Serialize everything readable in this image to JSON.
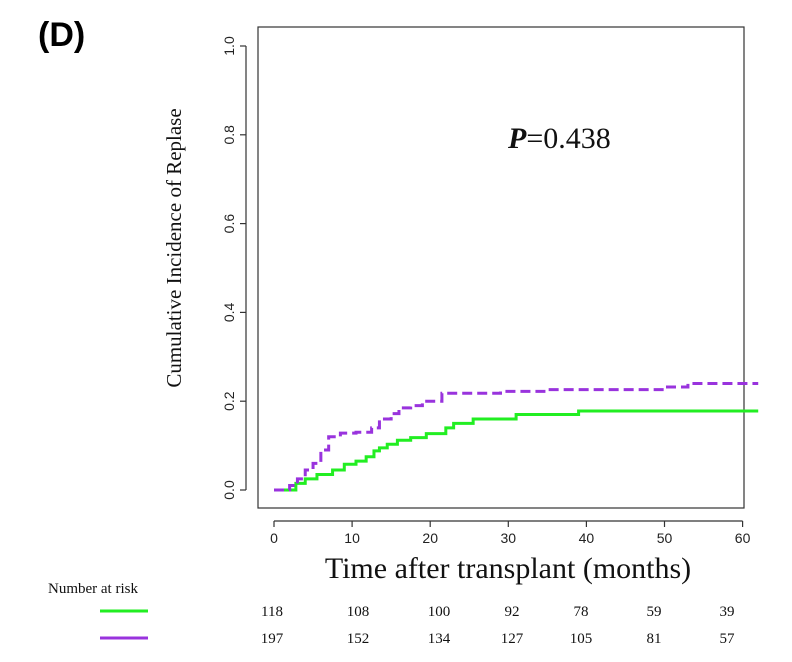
{
  "panel_label": "(D)",
  "annotation": {
    "p_symbol": "P",
    "p_value": "=0.438"
  },
  "chart_data": {
    "type": "line",
    "title": "",
    "xlabel": "Time after transplant (months)",
    "ylabel": "Cumulative Incidence of Replase",
    "xlim": [
      0,
      62
    ],
    "ylim": [
      0,
      1.0
    ],
    "xticks": [
      0,
      10,
      20,
      30,
      40,
      50,
      60
    ],
    "yticks": [
      0.0,
      0.2,
      0.4,
      0.6,
      0.8,
      1.0
    ],
    "xtick_labels": [
      "0",
      "10",
      "20",
      "30",
      "40",
      "50",
      "60"
    ],
    "ytick_labels": [
      "0.0",
      "0.2",
      "0.4",
      "0.6",
      "0.8",
      "1.0"
    ],
    "grid": false,
    "step": true,
    "series": [
      {
        "color": "#22ee22",
        "style": "solid",
        "x": [
          0,
          2.8,
          4,
          5.5,
          6.5,
          7.5,
          9,
          10.5,
          11.8,
          12.8,
          13.5,
          14.5,
          15.8,
          17.5,
          19.5,
          22,
          23,
          25.5,
          31,
          39,
          62
        ],
        "y": [
          0,
          0.015,
          0.025,
          0.035,
          0.035,
          0.045,
          0.058,
          0.065,
          0.075,
          0.088,
          0.095,
          0.103,
          0.112,
          0.118,
          0.127,
          0.14,
          0.15,
          0.16,
          0.17,
          0.178,
          0.178
        ]
      },
      {
        "color": "#9933dd",
        "style": "dashed",
        "x": [
          0,
          2,
          3,
          4,
          5,
          6,
          7,
          8.5,
          10.5,
          12.5,
          13.5,
          15,
          16,
          17.5,
          19,
          21.5,
          29,
          35,
          50,
          53,
          62
        ],
        "y": [
          0,
          0.01,
          0.025,
          0.045,
          0.06,
          0.09,
          0.12,
          0.128,
          0.13,
          0.14,
          0.16,
          0.172,
          0.185,
          0.19,
          0.2,
          0.218,
          0.222,
          0.226,
          0.232,
          0.24,
          0.24
        ]
      }
    ]
  },
  "risk_table": {
    "title": "Number at risk",
    "times": [
      0,
      10,
      20,
      30,
      40,
      50,
      60
    ],
    "rows": [
      {
        "color": "#22ee22",
        "values": [
          "118",
          "108",
          "100",
          "92",
          "78",
          "59",
          "39"
        ]
      },
      {
        "color": "#9933dd",
        "values": [
          "197",
          "152",
          "134",
          "127",
          "105",
          "81",
          "57"
        ]
      }
    ]
  }
}
